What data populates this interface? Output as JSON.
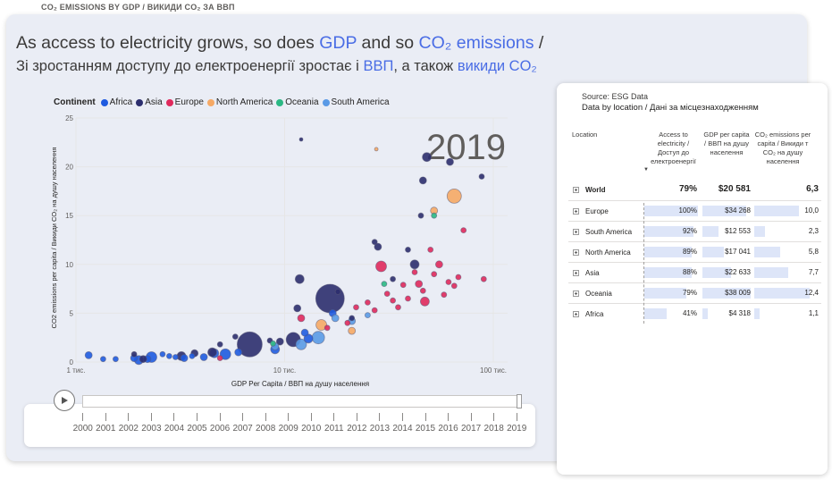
{
  "top_label": "CO₂ EMISSIONS BY GDP / ВИКИДИ CO₂ ЗА ВВП",
  "headline": {
    "line1_a": "As access to electricity grows, so does ",
    "line1_b": "GDP",
    "line1_c": " and so ",
    "line1_d": "CO₂ emissions",
    "line1_e": " /",
    "line2_a": "Зі зростанням доступу до електроенергії зростає і ",
    "line2_b": "ВВП",
    "line2_c": ", а також ",
    "line2_d": "викиди CO₂"
  },
  "legend": {
    "title": "Continent",
    "items": [
      {
        "label": "Africa",
        "color": "#1f5be0"
      },
      {
        "label": "Asia",
        "color": "#2c2e6e"
      },
      {
        "label": "Europe",
        "color": "#e0295c"
      },
      {
        "label": "North America",
        "color": "#f6a965"
      },
      {
        "label": "Oceania",
        "color": "#2bb884"
      },
      {
        "label": "South America",
        "color": "#5a9ae6"
      }
    ]
  },
  "chart_data": {
    "type": "scatter",
    "year_label": "2019",
    "xlabel": "GDP Per Capita / ВВП на душу населення",
    "ylabel": "CO2 emissions per capita / Викиди CO₂ на душу населення",
    "x_scale": "log",
    "x_ticks": [
      "1 тис.",
      "10 тис.",
      "100 тис."
    ],
    "y_ticks": [
      "0",
      "5",
      "10",
      "15",
      "20",
      "25"
    ],
    "ylim": [
      0,
      25
    ],
    "xlim": [
      1000,
      100000
    ],
    "points": [
      {
        "c": "Africa",
        "x": 1150,
        "y": 0.7,
        "s": 4
      },
      {
        "c": "Africa",
        "x": 1350,
        "y": 0.3,
        "s": 3
      },
      {
        "c": "Africa",
        "x": 1550,
        "y": 0.3,
        "s": 3
      },
      {
        "c": "Africa",
        "x": 1900,
        "y": 0.4,
        "s": 4
      },
      {
        "c": "Africa",
        "x": 2000,
        "y": 0.2,
        "s": 5
      },
      {
        "c": "Africa",
        "x": 2200,
        "y": 0.3,
        "s": 4
      },
      {
        "c": "Africa",
        "x": 2300,
        "y": 0.5,
        "s": 6
      },
      {
        "c": "Africa",
        "x": 2600,
        "y": 0.8,
        "s": 3
      },
      {
        "c": "Africa",
        "x": 2800,
        "y": 0.6,
        "s": 3
      },
      {
        "c": "Africa",
        "x": 3000,
        "y": 0.5,
        "s": 3
      },
      {
        "c": "Africa",
        "x": 3300,
        "y": 0.4,
        "s": 4
      },
      {
        "c": "Africa",
        "x": 3600,
        "y": 0.6,
        "s": 3
      },
      {
        "c": "Africa",
        "x": 4100,
        "y": 0.5,
        "s": 4
      },
      {
        "c": "Africa",
        "x": 4600,
        "y": 0.9,
        "s": 5
      },
      {
        "c": "Africa",
        "x": 5200,
        "y": 0.8,
        "s": 6
      },
      {
        "c": "Africa",
        "x": 6000,
        "y": 1.0,
        "s": 4
      },
      {
        "c": "Africa",
        "x": 9000,
        "y": 1.3,
        "s": 5
      },
      {
        "c": "Africa",
        "x": 12500,
        "y": 3.0,
        "s": 4
      },
      {
        "c": "Africa",
        "x": 13000,
        "y": 2.4,
        "s": 5
      },
      {
        "c": "Africa",
        "x": 17000,
        "y": 5.0,
        "s": 4
      },
      {
        "c": "Asia",
        "x": 1900,
        "y": 0.8,
        "s": 3
      },
      {
        "c": "Asia",
        "x": 2100,
        "y": 0.3,
        "s": 4
      },
      {
        "c": "Asia",
        "x": 3200,
        "y": 0.6,
        "s": 5
      },
      {
        "c": "Asia",
        "x": 3700,
        "y": 0.9,
        "s": 4
      },
      {
        "c": "Asia",
        "x": 4500,
        "y": 1.0,
        "s": 5
      },
      {
        "c": "Asia",
        "x": 4900,
        "y": 1.8,
        "s": 3
      },
      {
        "c": "Asia",
        "x": 5800,
        "y": 2.6,
        "s": 3
      },
      {
        "c": "Asia",
        "x": 6800,
        "y": 1.8,
        "s": 14
      },
      {
        "c": "Asia",
        "x": 8500,
        "y": 2.2,
        "s": 3
      },
      {
        "c": "Asia",
        "x": 9500,
        "y": 2.1,
        "s": 4
      },
      {
        "c": "Asia",
        "x": 11000,
        "y": 2.3,
        "s": 8
      },
      {
        "c": "Asia",
        "x": 11500,
        "y": 5.5,
        "s": 4
      },
      {
        "c": "Asia",
        "x": 11800,
        "y": 8.5,
        "s": 5
      },
      {
        "c": "Asia",
        "x": 16500,
        "y": 6.5,
        "s": 16
      },
      {
        "c": "Asia",
        "x": 12000,
        "y": 22.8,
        "s": 2
      },
      {
        "c": "Asia",
        "x": 18000,
        "y": 7.2,
        "s": 3
      },
      {
        "c": "Asia",
        "x": 21000,
        "y": 4.5,
        "s": 3
      },
      {
        "c": "Asia",
        "x": 27000,
        "y": 12.3,
        "s": 3
      },
      {
        "c": "Asia",
        "x": 28000,
        "y": 11.8,
        "s": 4
      },
      {
        "c": "Asia",
        "x": 33000,
        "y": 8.5,
        "s": 3
      },
      {
        "c": "Asia",
        "x": 42000,
        "y": 10.0,
        "s": 5
      },
      {
        "c": "Asia",
        "x": 46000,
        "y": 18.6,
        "s": 4
      },
      {
        "c": "Asia",
        "x": 48000,
        "y": 21.0,
        "s": 5
      },
      {
        "c": "Asia",
        "x": 62000,
        "y": 20.5,
        "s": 4
      },
      {
        "c": "Asia",
        "x": 88000,
        "y": 19.0,
        "s": 3
      },
      {
        "c": "Asia",
        "x": 45000,
        "y": 15.0,
        "s": 3
      },
      {
        "c": "Asia",
        "x": 39000,
        "y": 11.5,
        "s": 3
      },
      {
        "c": "Europe",
        "x": 4900,
        "y": 0.4,
        "s": 3
      },
      {
        "c": "Europe",
        "x": 12000,
        "y": 4.5,
        "s": 4
      },
      {
        "c": "Europe",
        "x": 16000,
        "y": 3.5,
        "s": 3
      },
      {
        "c": "Europe",
        "x": 20000,
        "y": 4.0,
        "s": 3
      },
      {
        "c": "Europe",
        "x": 22000,
        "y": 5.6,
        "s": 3
      },
      {
        "c": "Europe",
        "x": 25000,
        "y": 6.1,
        "s": 3
      },
      {
        "c": "Europe",
        "x": 27000,
        "y": 5.3,
        "s": 3
      },
      {
        "c": "Europe",
        "x": 29000,
        "y": 9.8,
        "s": 6
      },
      {
        "c": "Europe",
        "x": 31000,
        "y": 7.0,
        "s": 3
      },
      {
        "c": "Europe",
        "x": 33000,
        "y": 6.3,
        "s": 3
      },
      {
        "c": "Europe",
        "x": 35000,
        "y": 5.6,
        "s": 3
      },
      {
        "c": "Europe",
        "x": 37000,
        "y": 7.9,
        "s": 3
      },
      {
        "c": "Europe",
        "x": 39000,
        "y": 6.5,
        "s": 3
      },
      {
        "c": "Europe",
        "x": 42000,
        "y": 9.2,
        "s": 3
      },
      {
        "c": "Europe",
        "x": 44000,
        "y": 8.0,
        "s": 4
      },
      {
        "c": "Europe",
        "x": 46000,
        "y": 7.3,
        "s": 3
      },
      {
        "c": "Europe",
        "x": 47000,
        "y": 6.2,
        "s": 5
      },
      {
        "c": "Europe",
        "x": 50000,
        "y": 11.5,
        "s": 3
      },
      {
        "c": "Europe",
        "x": 52000,
        "y": 9.0,
        "s": 3
      },
      {
        "c": "Europe",
        "x": 55000,
        "y": 10.0,
        "s": 4
      },
      {
        "c": "Europe",
        "x": 58000,
        "y": 6.9,
        "s": 3
      },
      {
        "c": "Europe",
        "x": 61000,
        "y": 8.2,
        "s": 3
      },
      {
        "c": "Europe",
        "x": 65000,
        "y": 7.8,
        "s": 3
      },
      {
        "c": "Europe",
        "x": 68000,
        "y": 8.7,
        "s": 3
      },
      {
        "c": "Europe",
        "x": 72000,
        "y": 13.5,
        "s": 3
      },
      {
        "c": "Europe",
        "x": 90000,
        "y": 8.5,
        "s": 3
      },
      {
        "c": "North America",
        "x": 21000,
        "y": 3.2,
        "s": 4
      },
      {
        "c": "North America",
        "x": 27500,
        "y": 21.8,
        "s": 2
      },
      {
        "c": "North America",
        "x": 15000,
        "y": 3.8,
        "s": 6
      },
      {
        "c": "North America",
        "x": 52000,
        "y": 15.5,
        "s": 4
      },
      {
        "c": "North America",
        "x": 65000,
        "y": 17.0,
        "s": 8
      },
      {
        "c": "Oceania",
        "x": 8800,
        "y": 1.9,
        "s": 3
      },
      {
        "c": "Oceania",
        "x": 30000,
        "y": 8.0,
        "s": 3
      },
      {
        "c": "Oceania",
        "x": 52000,
        "y": 15.0,
        "s": 3
      },
      {
        "c": "South America",
        "x": 9000,
        "y": 1.6,
        "s": 4
      },
      {
        "c": "South America",
        "x": 12000,
        "y": 1.8,
        "s": 6
      },
      {
        "c": "South America",
        "x": 14500,
        "y": 2.5,
        "s": 7
      },
      {
        "c": "South America",
        "x": 17500,
        "y": 4.5,
        "s": 4
      },
      {
        "c": "South America",
        "x": 21000,
        "y": 4.2,
        "s": 4
      },
      {
        "c": "South America",
        "x": 25000,
        "y": 4.8,
        "s": 3
      }
    ]
  },
  "timeline": {
    "years": [
      "2000",
      "2001",
      "2002",
      "2003",
      "2004",
      "2005",
      "2006",
      "2007",
      "2008",
      "2009",
      "2010",
      "2011",
      "2012",
      "2013",
      "2014",
      "2015",
      "2016",
      "2017",
      "2018",
      "2019"
    ],
    "selected_year": "2019",
    "position": 1.0
  },
  "table": {
    "source": "Source: ESG Data",
    "subtitle": "Data by location / Дані за місцезнаходженням",
    "headers": {
      "location": "Location",
      "access": "Access to electricity / Доступ до електроенергії",
      "gdp": "GDP per capita / ВВП на душу населення",
      "co2": "CO₂ emissions per capita / Викиди т CO₂ на душу населення"
    },
    "world": {
      "name": "World",
      "access": "79%",
      "gdp": "$20 581",
      "co2": "6,3"
    },
    "rows": [
      {
        "name": "Europe",
        "access": "100%",
        "gdp": "$34 268",
        "co2": "10,0",
        "access_v": 1.0,
        "gdp_v": 0.9,
        "co2_v": 0.81
      },
      {
        "name": "South America",
        "access": "92%",
        "gdp": "$12 553",
        "co2": "2,3",
        "access_v": 0.92,
        "gdp_v": 0.33,
        "co2_v": 0.19
      },
      {
        "name": "North America",
        "access": "89%",
        "gdp": "$17 041",
        "co2": "5,8",
        "access_v": 0.89,
        "gdp_v": 0.45,
        "co2_v": 0.47
      },
      {
        "name": "Asia",
        "access": "88%",
        "gdp": "$22 633",
        "co2": "7,7",
        "access_v": 0.88,
        "gdp_v": 0.6,
        "co2_v": 0.62
      },
      {
        "name": "Oceania",
        "access": "79%",
        "gdp": "$38 009",
        "co2": "12,4",
        "access_v": 0.79,
        "gdp_v": 1.0,
        "co2_v": 1.0
      },
      {
        "name": "Africa",
        "access": "41%",
        "gdp": "$4 318",
        "co2": "1,1",
        "access_v": 0.41,
        "gdp_v": 0.11,
        "co2_v": 0.09
      }
    ]
  }
}
